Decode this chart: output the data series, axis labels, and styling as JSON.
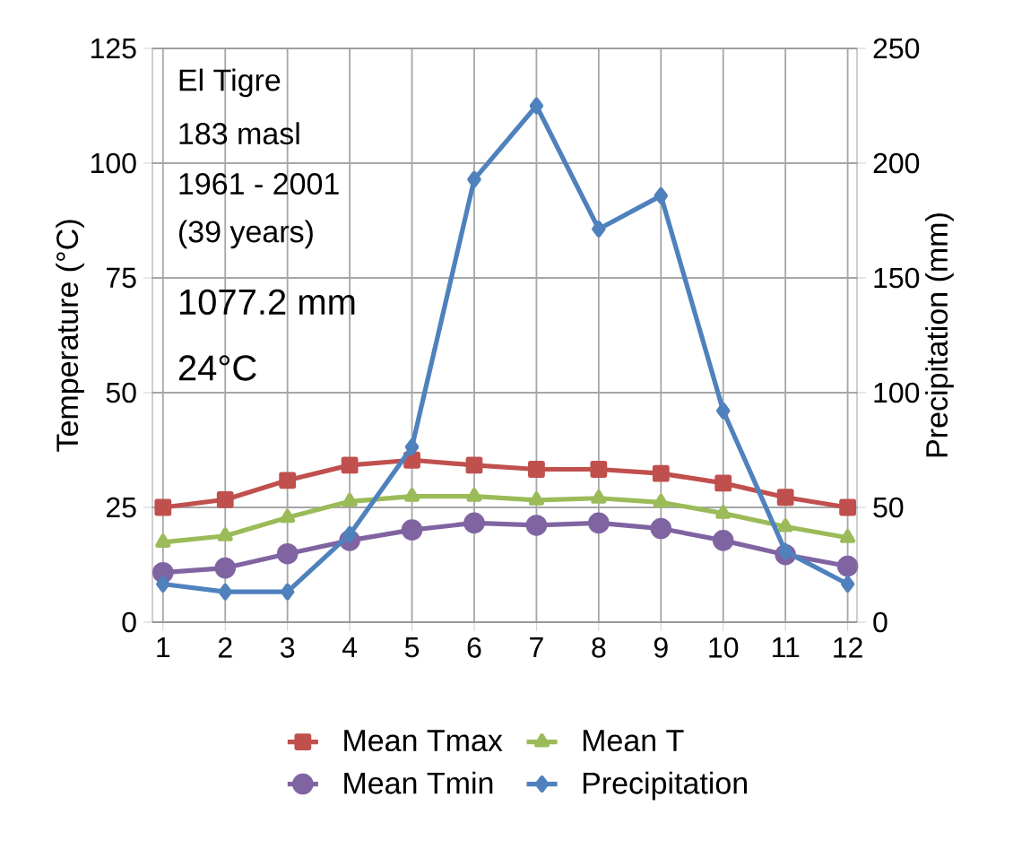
{
  "chart_data": {
    "type": "line",
    "xlabel": null,
    "ylabel": "Temperature (°C)",
    "y2label": "Precipitation (mm)",
    "categories": [
      "1",
      "2",
      "3",
      "4",
      "5",
      "6",
      "7",
      "8",
      "9",
      "10",
      "11",
      "12"
    ],
    "series": [
      {
        "name": "Mean Tmax",
        "color": "#c0504d",
        "marker": "square",
        "values": [
          25.0,
          26.7,
          30.9,
          34.2,
          35.3,
          34.2,
          33.3,
          33.3,
          32.4,
          30.3,
          27.2,
          25.0
        ]
      },
      {
        "name": "Mean T",
        "color": "#9bbb59",
        "marker": "triangle",
        "values": [
          17.4,
          18.8,
          22.8,
          26.3,
          27.4,
          27.4,
          26.6,
          27.0,
          26.1,
          23.7,
          20.8,
          18.4
        ]
      },
      {
        "name": "Mean Tmin",
        "color": "#8064a2",
        "marker": "circle",
        "values": [
          10.8,
          11.8,
          14.9,
          17.8,
          20.1,
          21.6,
          21.1,
          21.6,
          20.4,
          17.8,
          14.7,
          12.2
        ]
      },
      {
        "name": "Precipitation",
        "color": "#4f81bd",
        "marker": "diamond",
        "axis": "y2",
        "values": [
          16.6,
          13.2,
          13.2,
          38.2,
          76.3,
          192.9,
          225.0,
          171.3,
          185.8,
          92.1,
          30.8,
          16.6
        ]
      }
    ],
    "ylim": [
      0,
      125
    ],
    "yticks": [
      0,
      25,
      50,
      75,
      100,
      125
    ],
    "y2lim": [
      0,
      250
    ],
    "y2ticks": [
      0,
      50,
      100,
      150,
      200,
      250
    ],
    "grid": true,
    "legend": "bottom",
    "line_style": "solid",
    "annotations": [
      "El Tigre",
      "183 masl",
      "1961 - 2001",
      "(39 years)",
      "1077.2 mm",
      "24°C"
    ]
  }
}
